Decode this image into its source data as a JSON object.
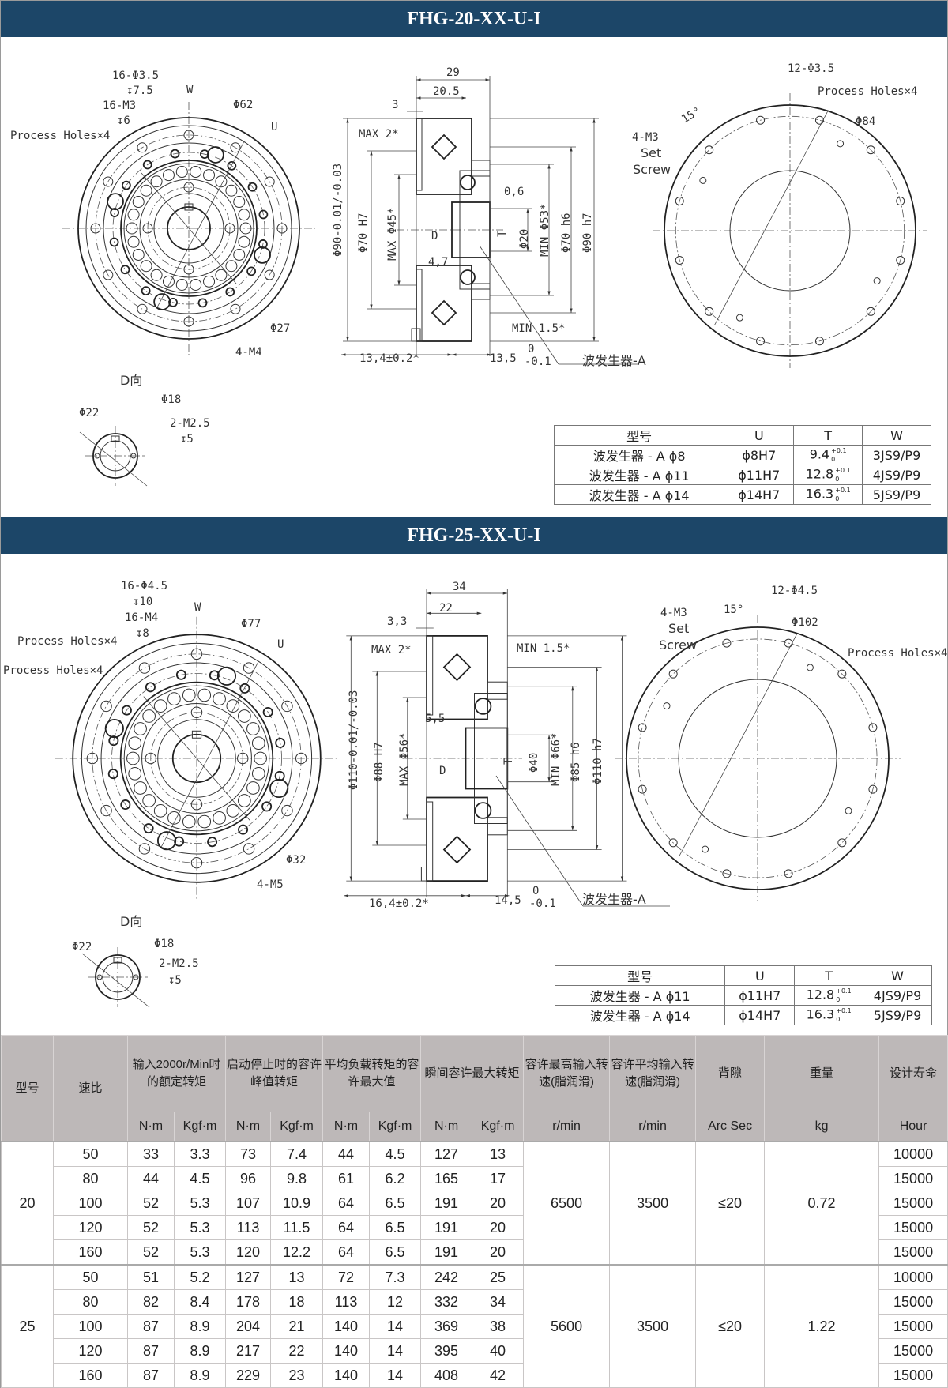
{
  "sections": [
    {
      "title": "FHG-20-XX-U-I",
      "front_labels": [
        "16-Φ3.5",
        "↧7.5",
        "W",
        "16-M3",
        "↧6",
        "Process Holes×4",
        "Φ62",
        "U",
        "Φ27",
        "4-M4"
      ],
      "section_labels": [
        "29",
        "20.5",
        "3",
        "MAX 2*",
        "0,6",
        "4,7",
        "D",
        "MIN 1.5*",
        "13,4±0.2*",
        "13,5",
        "0",
        "-0.1",
        "波发生器-A",
        "T"
      ],
      "section_vertical_labels": [
        "Φ90-0.01/-0.03",
        "Φ70 H7",
        "MAX Φ45*",
        "Φ20",
        "MIN Φ53*",
        "Φ70 h6",
        "Φ90 h7"
      ],
      "rear_labels": [
        "12-Φ3.5",
        "Process Holes×4",
        "Φ84",
        "15°",
        "4-M3",
        "Set",
        "Screw"
      ],
      "d_view_labels": [
        "D向",
        "Φ22",
        "Φ18",
        "2-M2.5",
        "↧5"
      ],
      "spec_table": {
        "headers": [
          "型号",
          "U",
          "T",
          "W"
        ],
        "rows": [
          {
            "model": "波发生器 - A ϕ8",
            "u": "ϕ8H7",
            "t": "9.4",
            "t_upper": "+0.1",
            "t_lower": "0",
            "w": "3JS9/P9"
          },
          {
            "model": "波发生器 - A ϕ11",
            "u": "ϕ11H7",
            "t": "12.8",
            "t_upper": "+0.1",
            "t_lower": "0",
            "w": "4JS9/P9"
          },
          {
            "model": "波发生器 - A ϕ14",
            "u": "ϕ14H7",
            "t": "16.3",
            "t_upper": "+0.1",
            "t_lower": "0",
            "w": "5JS9/P9"
          }
        ]
      }
    },
    {
      "title": "FHG-25-XX-U-I",
      "front_labels": [
        "16-Φ4.5",
        "↧10",
        "W",
        "16-M4",
        "↧8",
        "Process Holes×4",
        "Process Holes×4",
        "Φ77",
        "U",
        "Φ32",
        "4-M5"
      ],
      "section_labels": [
        "34",
        "22",
        "3,3",
        "MAX 2*",
        "MIN 1.5*",
        "5,5",
        "D",
        "16,4±0.2*",
        "14,5",
        "0",
        "-0.1",
        "波发生器-A",
        "T"
      ],
      "section_vertical_labels": [
        "Φ110-0.01/-0.03",
        "Φ88 H7",
        "MAX Φ56*",
        "Φ40",
        "MIN Φ66*",
        "Φ85 h6",
        "Φ110 h7"
      ],
      "rear_labels": [
        "12-Φ4.5",
        "Φ102",
        "Process Holes×4",
        "15°",
        "4-M3",
        "Set",
        "Screw"
      ],
      "d_view_labels": [
        "D向",
        "Φ22",
        "Φ18",
        "2-M2.5",
        "↧5"
      ],
      "spec_table": {
        "headers": [
          "型号",
          "U",
          "T",
          "W"
        ],
        "rows": [
          {
            "model": "波发生器 - A ϕ11",
            "u": "ϕ11H7",
            "t": "12.8",
            "t_upper": "+0.1",
            "t_lower": "0",
            "w": "4JS9/P9"
          },
          {
            "model": "波发生器 - A ϕ14",
            "u": "ϕ14H7",
            "t": "16.3",
            "t_upper": "+0.1",
            "t_lower": "0",
            "w": "5JS9/P9"
          }
        ]
      }
    }
  ],
  "performance_table": {
    "headers": [
      "型号",
      "速比",
      "输入2000r/Min时的额定转矩",
      "启动停止时的容许峰值转矩",
      "平均负载转矩的容许最大值",
      "瞬间容许最大转矩",
      "容许最高输入转速(脂润滑)",
      "容许平均输入转速(脂润滑)",
      "背隙",
      "重量",
      "设计寿命"
    ],
    "units": [
      "N·m",
      "Kgf·m",
      "N·m",
      "Kgf·m",
      "N·m",
      "Kgf·m",
      "N·m",
      "Kgf·m",
      "r/min",
      "r/min",
      "Arc Sec",
      "kg",
      "Hour"
    ],
    "groups": [
      {
        "model": "20",
        "max_speed": "6500",
        "avg_speed": "3500",
        "backlash": "≤20",
        "weight": "0.72",
        "rows": [
          [
            "50",
            "33",
            "3.3",
            "73",
            "7.4",
            "44",
            "4.5",
            "127",
            "13",
            "10000"
          ],
          [
            "80",
            "44",
            "4.5",
            "96",
            "9.8",
            "61",
            "6.2",
            "165",
            "17",
            "15000"
          ],
          [
            "100",
            "52",
            "5.3",
            "107",
            "10.9",
            "64",
            "6.5",
            "191",
            "20",
            "15000"
          ],
          [
            "120",
            "52",
            "5.3",
            "113",
            "11.5",
            "64",
            "6.5",
            "191",
            "20",
            "15000"
          ],
          [
            "160",
            "52",
            "5.3",
            "120",
            "12.2",
            "64",
            "6.5",
            "191",
            "20",
            "15000"
          ]
        ]
      },
      {
        "model": "25",
        "max_speed": "5600",
        "avg_speed": "3500",
        "backlash": "≤20",
        "weight": "1.22",
        "rows": [
          [
            "50",
            "51",
            "5.2",
            "127",
            "13",
            "72",
            "7.3",
            "242",
            "25",
            "10000"
          ],
          [
            "80",
            "82",
            "8.4",
            "178",
            "18",
            "113",
            "12",
            "332",
            "34",
            "15000"
          ],
          [
            "100",
            "87",
            "8.9",
            "204",
            "21",
            "140",
            "14",
            "369",
            "38",
            "15000"
          ],
          [
            "120",
            "87",
            "8.9",
            "217",
            "22",
            "140",
            "14",
            "395",
            "40",
            "15000"
          ],
          [
            "160",
            "87",
            "8.9",
            "229",
            "23",
            "140",
            "14",
            "408",
            "42",
            "15000"
          ]
        ]
      }
    ]
  },
  "colors": {
    "title_bar": "#1c4668",
    "table_header": "#bdb8b8"
  }
}
